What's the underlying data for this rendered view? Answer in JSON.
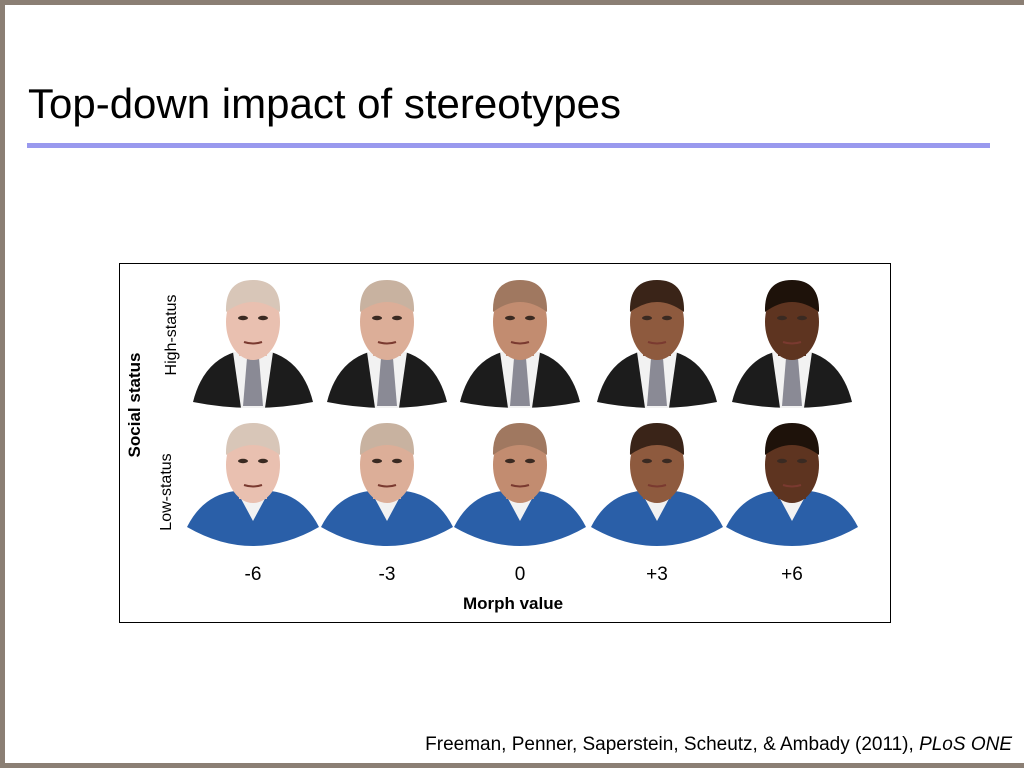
{
  "title": "Top-down impact of stereotypes",
  "figure": {
    "y_axis_label": "Social status",
    "rows": [
      "High-status",
      "Low-status"
    ],
    "columns": [
      "-6",
      "-3",
      "0",
      "+3",
      "+6"
    ],
    "x_axis_label": "Morph value"
  },
  "citation": {
    "authors": "Freeman, Penner, Saperstein, Scheutz, & Ambady (2011), ",
    "journal": "PLoS ONE"
  }
}
